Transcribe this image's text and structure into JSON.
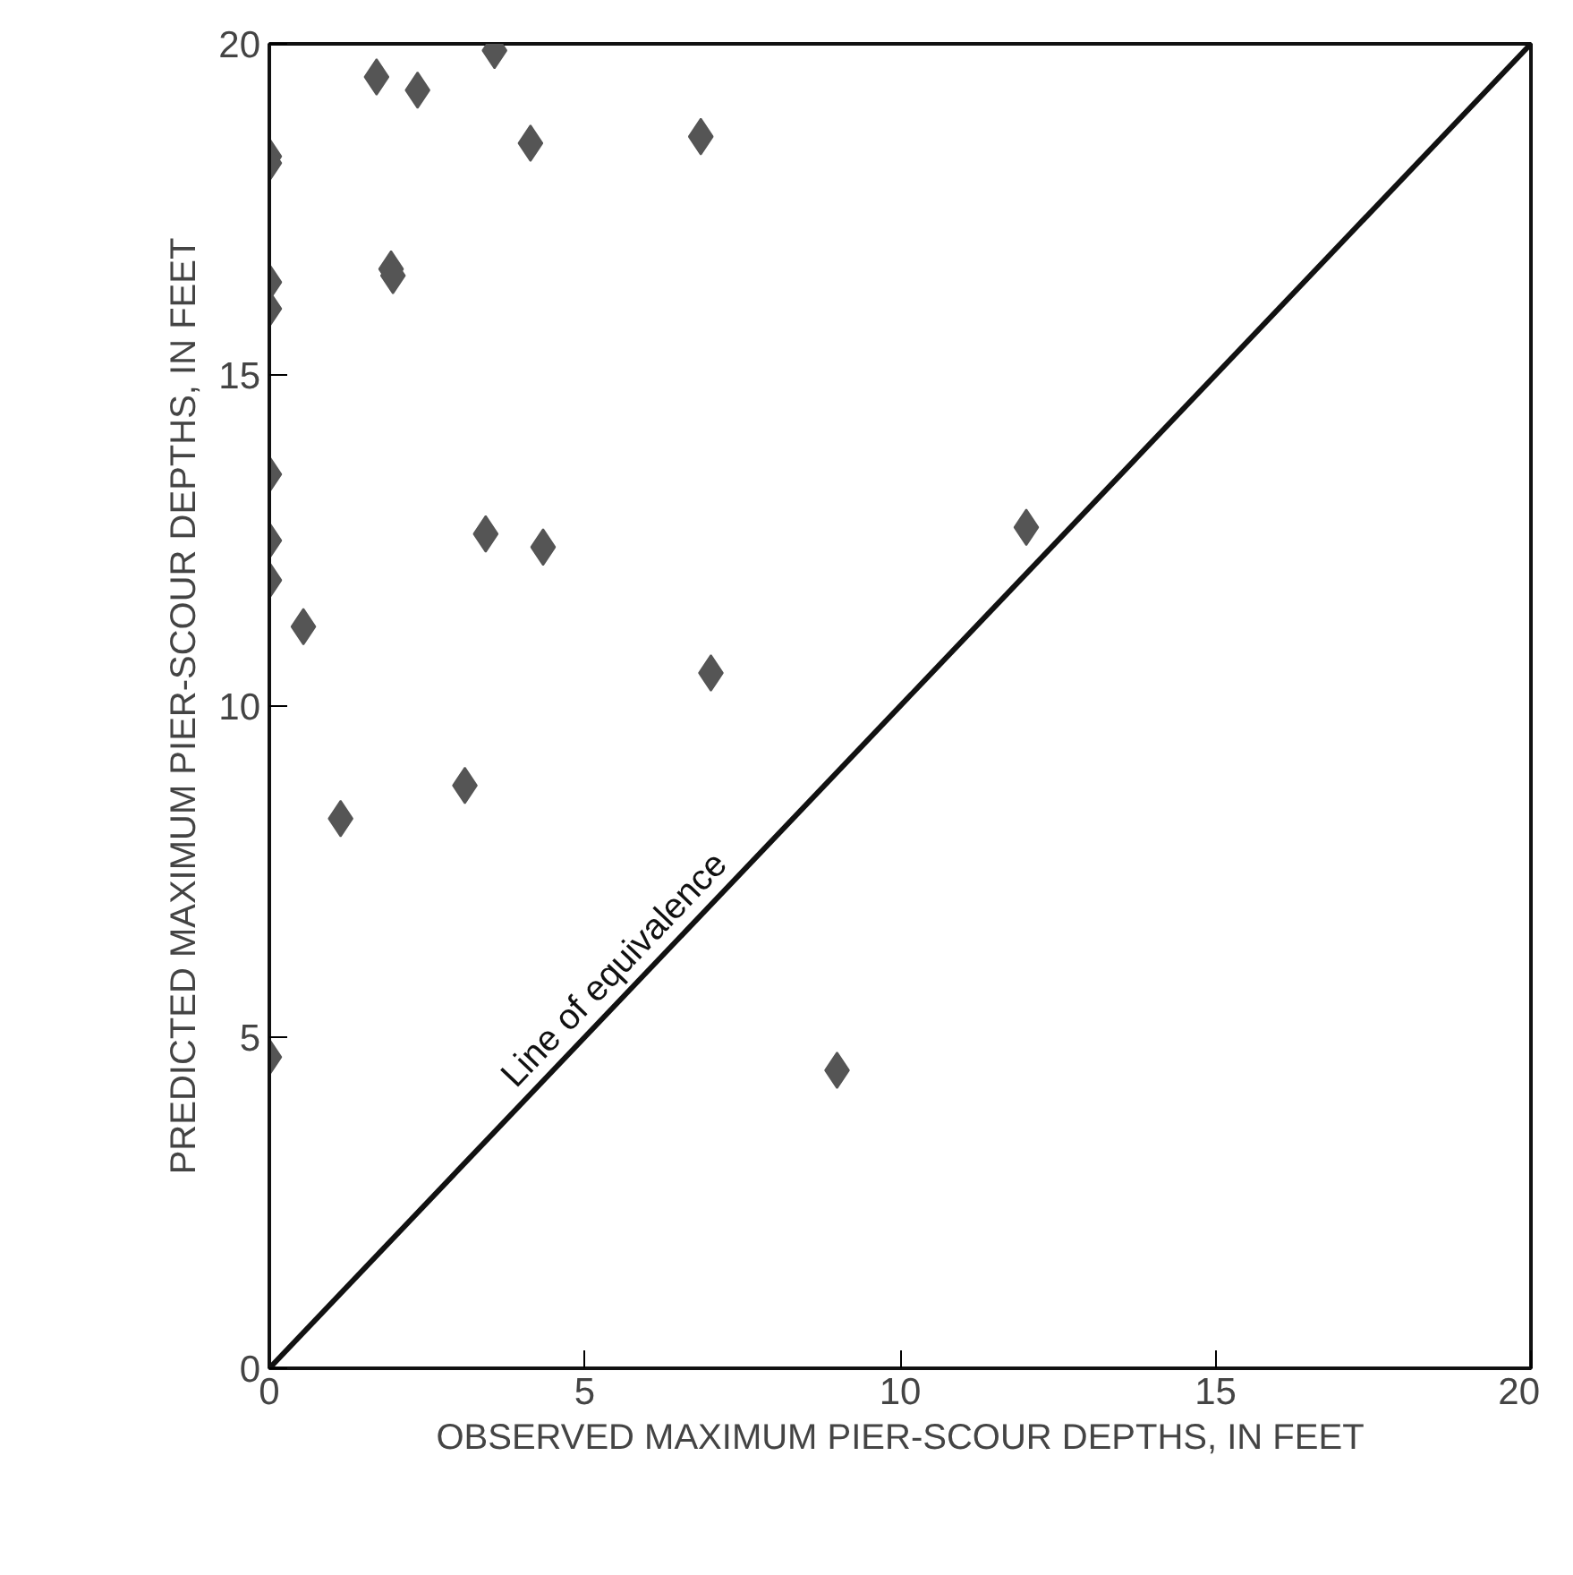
{
  "chart_data": {
    "type": "scatter",
    "xlabel": "OBSERVED MAXIMUM PIER-SCOUR DEPTHS, IN FEET",
    "ylabel": "PREDICTED MAXIMUM PIER-SCOUR DEPTHS, IN FEET",
    "xlim": [
      0,
      20
    ],
    "ylim": [
      0,
      20
    ],
    "xticks": [
      0,
      5,
      10,
      15,
      20
    ],
    "yticks": [
      0,
      5,
      10,
      15,
      20
    ],
    "grid": false,
    "marker": "diamond",
    "series": [
      {
        "color": "#555555",
        "x": [
          0,
          0,
          0,
          0,
          0,
          0,
          0,
          0,
          0.54,
          1.13,
          1.7,
          1.93,
          1.96,
          2.35,
          3.1,
          3.43,
          3.57,
          4.14,
          4.34,
          6.84,
          7.0,
          9.0,
          12.0
        ],
        "values": [
          18.3,
          18.2,
          16.4,
          16.0,
          13.5,
          12.5,
          11.9,
          4.7,
          11.2,
          8.3,
          19.5,
          16.6,
          16.5,
          19.3,
          8.8,
          12.6,
          19.9,
          18.5,
          12.4,
          18.6,
          10.5,
          4.5,
          12.7
        ]
      },
      {
        "type": "line",
        "marker": "none",
        "color": "#111111",
        "x": [
          0,
          20
        ],
        "values": [
          0,
          20
        ]
      }
    ],
    "annotations": [
      {
        "text": "Line of equivalence",
        "x": 5.7,
        "y": 5.7
      }
    ]
  }
}
